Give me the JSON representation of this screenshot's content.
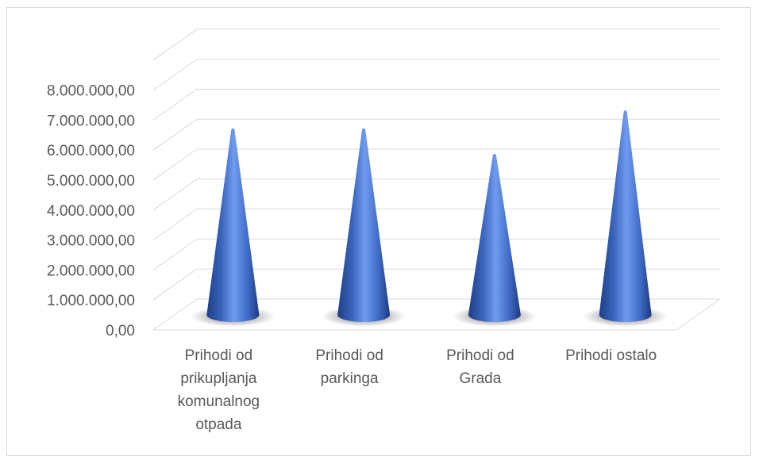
{
  "chart_data": {
    "type": "bar",
    "shape": "cone-3d",
    "categories": [
      [
        "Prihodi od",
        "prikupljanja",
        "komunalnog",
        "otpada"
      ],
      [
        "Prihodi od",
        "parkinga"
      ],
      [
        "Prihodi od",
        "Grada"
      ],
      [
        "Prihodi ostalo"
      ]
    ],
    "values": [
      6950000,
      6950000,
      6100000,
      7550000
    ],
    "y_ticks": [
      "0,00",
      "1.000.000,00",
      "2.000.000,00",
      "3.000.000,00",
      "4.000.000,00",
      "5.000.000,00",
      "6.000.000,00",
      "7.000.000,00",
      "8.000.000,00"
    ],
    "ylim": [
      0,
      9000000
    ],
    "grid": true,
    "title": "",
    "xlabel": "",
    "ylabel": "",
    "colors": {
      "bar": "#4472c4",
      "bar_light": "#6f9bf0",
      "bar_dark": "#1f3f86",
      "grid": "#d9d9d9",
      "text": "#595959"
    }
  }
}
